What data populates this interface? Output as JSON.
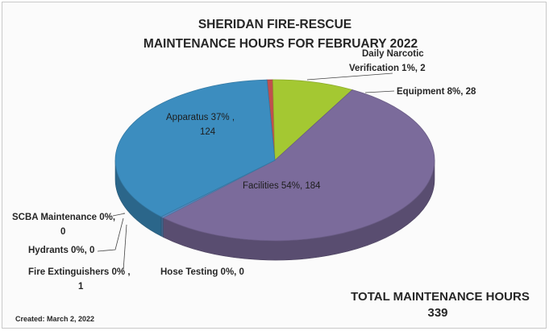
{
  "chart_data": {
    "type": "pie",
    "title": "SHERIDAN FIRE-RESCUE",
    "subtitle": "MAINTENANCE HOURS FOR FEBRUARY 2022",
    "slices": [
      {
        "name": "Facilities",
        "percent_label": "54%",
        "value": 184,
        "color": "#7b6b9b",
        "label": "Facilities 54%, 184"
      },
      {
        "name": "Apparatus",
        "percent_label": "37%",
        "value": 124,
        "color": "#3c8dbf",
        "label_line1": "Apparatus 37% ,",
        "label_line2": "124"
      },
      {
        "name": "SCBA Maintenance",
        "percent_label": "0%",
        "value": 0,
        "color": "#5a8ac0",
        "label_line1": "SCBA Maintenance 0%,",
        "label_line2": "0"
      },
      {
        "name": "Hydrants",
        "percent_label": "0%",
        "value": 0,
        "color": "#5a8ac0",
        "label": "Hydrants 0%, 0"
      },
      {
        "name": "Fire Extinguishers",
        "percent_label": "0%",
        "value": 1,
        "color": "#5a8ac0",
        "label_line1": "Fire Extinguishers 0% ,",
        "label_line2": "1"
      },
      {
        "name": "Hose Testing",
        "percent_label": "0%",
        "value": 0,
        "color": "#5a8ac0",
        "label": "Hose Testing 0%, 0"
      },
      {
        "name": "Daily Narcotic Verification",
        "percent_label": "1%",
        "value": 2,
        "color": "#c0504d",
        "label_line1": "Daily Narcotic",
        "label_line2": "Verification 1%, 2"
      },
      {
        "name": "Equipment",
        "percent_label": "8%",
        "value": 28,
        "color": "#a4c832",
        "label": "Equipment 8%, 28"
      }
    ],
    "total_label": "TOTAL MAINTENANCE HOURS",
    "total_value": "339",
    "legend": "none"
  },
  "footer": {
    "created": "Created: March 2, 2022"
  }
}
